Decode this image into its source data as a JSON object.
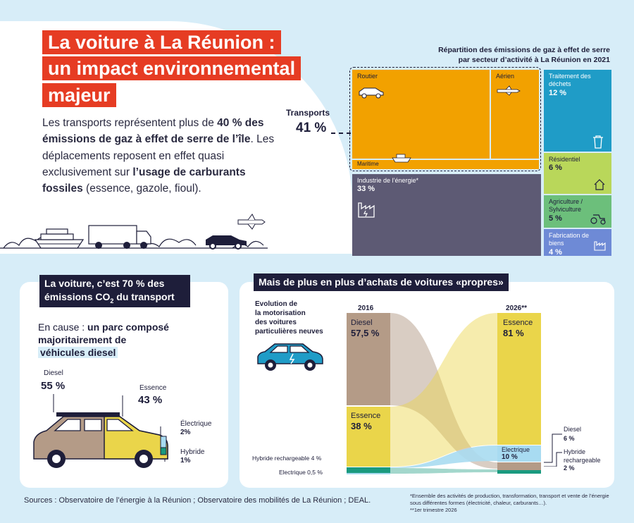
{
  "title": {
    "line1": "La voiture à La Réunion :",
    "line2": "un impact environnemental",
    "line3": "majeur"
  },
  "intro": {
    "p1": "Les transports représentent plus de ",
    "b1": "40 % des émissions de gaz à effet de serre de l’île",
    "p2": ". Les déplacements reposent en effet quasi exclusivement sur ",
    "b2": "l’usage de carburants fossiles",
    "p3": " (essence, gazole, fioul)."
  },
  "treemap": {
    "title_line1": "Répartition des émissions de gaz à effet de serre",
    "title_line2": "par secteur d’activité à La Réunion en 2021",
    "transports_label": "Transports",
    "transports_pct": "41 %",
    "routier": "Routier",
    "aerien": "Aérien",
    "maritime": "Maritime",
    "industrie_label": "Industrie de l’énergie*",
    "industrie_pct": "33 %",
    "dechets_label": "Traitement des déchets",
    "dechets_pct": "12 %",
    "residentiel_label": "Résidentiel",
    "residentiel_pct": "6 %",
    "agriculture_label": "Agriculture / Sylviculture",
    "agriculture_pct": "5 %",
    "fabrication_label": "Fabrication de biens",
    "fabrication_pct": "4 %",
    "colors": {
      "transports": "#f2a100",
      "industrie": "#5d5a74",
      "dechets": "#1f9cc7",
      "residentiel": "#b9d75a",
      "agriculture": "#6cbf7b",
      "fabrication": "#6e8ad6"
    }
  },
  "left_card": {
    "header_line1": "La voiture, c’est 70 % des",
    "header_line2_a": "émissions CO",
    "header_line2_sub": "2",
    "header_line2_b": " du transport",
    "text_plain": "En cause : ",
    "text_bold1": "un parc composé majoritairement de",
    "text_bold2": "véhicules diesel",
    "diesel_label": "Diesel",
    "diesel_pct": "55 %",
    "essence_label": "Essence",
    "essence_pct": "43 %",
    "electrique_label": "Électrique",
    "electrique_pct": "2%",
    "hybride_label": "Hybride",
    "hybride_pct": "1%"
  },
  "right_card": {
    "header": "Mais de plus en plus d’achats de voitures «propres»",
    "evolution_label_line1": "Evolution de",
    "evolution_label_line2": "la motorisation",
    "evolution_label_line3": "des voitures",
    "evolution_label_line4": "particulières neuves",
    "year_2016": "2016",
    "year_2026": "2026**",
    "diesel_2016_label": "Diesel",
    "diesel_2016_pct": "57,5 %",
    "essence_2016_label": "Essence",
    "essence_2016_pct": "38 %",
    "hybride_2016": "Hybride rechargeable 4 %",
    "electrique_2016": "Electrique 0,5 %",
    "essence_2026_label": "Essence",
    "essence_2026_pct": "81 %",
    "electrique_2026_label": "Electrique",
    "electrique_2026_pct": "10 %",
    "diesel_2026_label": "Diesel",
    "diesel_2026_pct": "6 %",
    "hybride_2026_label_line1": "Hybride",
    "hybride_2026_label_line2": "rechargeable",
    "hybride_2026_pct": "2 %",
    "colors": {
      "diesel": "#b49b87",
      "essence": "#ead54a",
      "hybride": "#1a9a7f",
      "electrique": "#a8dbf1"
    }
  },
  "footer": {
    "sources": "Sources : Observatoire de l’énergie à la Réunion ; Observatoire des mobilités de La Réunion ; DEAL.",
    "note1": "*Ensemble des activités de production, transformation, transport et vente de l’énergie sous différentes formes (électricité, chaleur, carburants…).",
    "note2": "**1er trimestre 2026"
  }
}
